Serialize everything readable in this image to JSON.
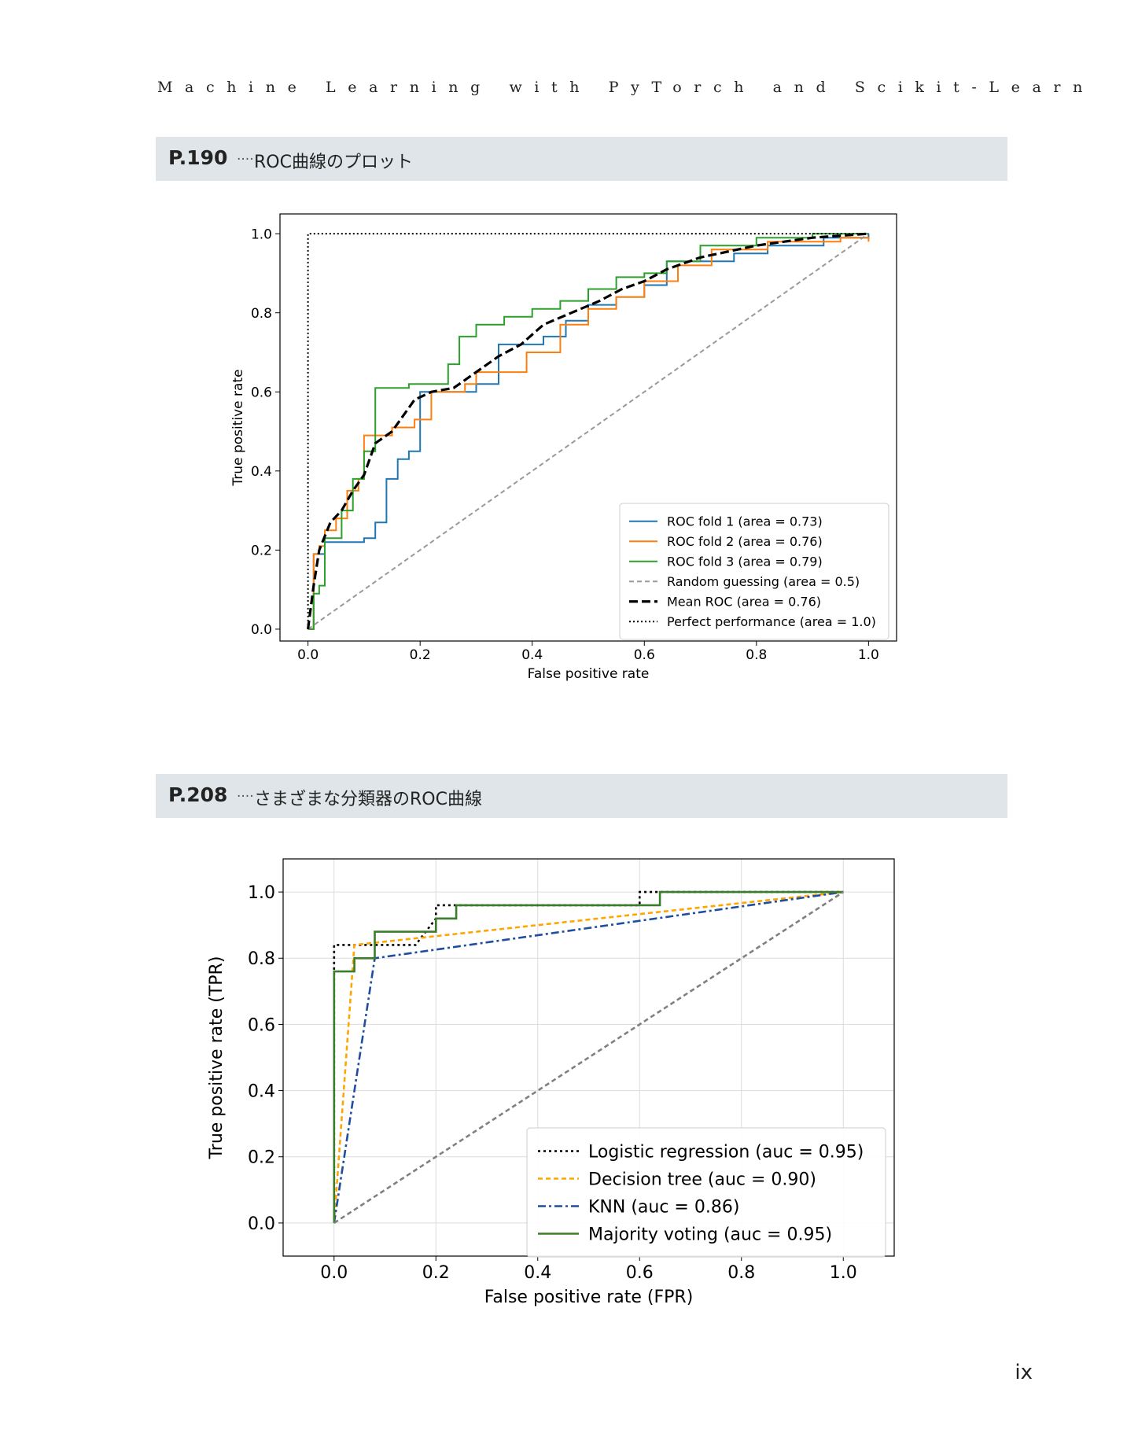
{
  "page": {
    "running_head": "Machine Learning with PyTorch and Scikit-Learn",
    "page_number": "ix"
  },
  "sections": [
    {
      "number": "P.190",
      "dots": "....",
      "title": "ROC曲線のプロット"
    },
    {
      "number": "P.208",
      "dots": "....",
      "title": "さまざまな分類器のROC曲線"
    }
  ],
  "chart_data": [
    {
      "type": "line",
      "title": "",
      "xlabel": "False positive rate",
      "ylabel": "True positive rate",
      "xlim": [
        -0.05,
        1.05
      ],
      "ylim": [
        -0.03,
        1.05
      ],
      "xticks": [
        "0.0",
        "0.2",
        "0.4",
        "0.6",
        "0.8",
        "1.0"
      ],
      "yticks": [
        "0.0",
        "0.2",
        "0.4",
        "0.6",
        "0.8",
        "1.0"
      ],
      "grid": false,
      "legend_position": "lower-right",
      "series": [
        {
          "name": "ROC fold 1 (area = 0.73)",
          "color": "#1f77b4",
          "style": "solid",
          "step": true,
          "x": [
            0,
            0.01,
            0.03,
            0.1,
            0.12,
            0.14,
            0.16,
            0.18,
            0.2,
            0.24,
            0.3,
            0.34,
            0.38,
            0.42,
            0.46,
            0.5,
            0.55,
            0.6,
            0.64,
            0.7,
            0.76,
            0.82,
            0.92,
            1.0
          ],
          "y": [
            0,
            0.19,
            0.22,
            0.23,
            0.27,
            0.38,
            0.43,
            0.45,
            0.6,
            0.6,
            0.62,
            0.72,
            0.72,
            0.74,
            0.78,
            0.82,
            0.84,
            0.87,
            0.93,
            0.93,
            0.95,
            0.97,
            0.99,
            1.0
          ]
        },
        {
          "name": "ROC fold 2 (area = 0.76)",
          "color": "#ff7f0e",
          "style": "solid",
          "step": true,
          "x": [
            0,
            0.01,
            0.02,
            0.03,
            0.05,
            0.07,
            0.09,
            0.1,
            0.12,
            0.15,
            0.19,
            0.22,
            0.28,
            0.3,
            0.39,
            0.45,
            0.5,
            0.55,
            0.6,
            0.66,
            0.72,
            0.82,
            0.95,
            1.0
          ],
          "y": [
            0,
            0.19,
            0.21,
            0.25,
            0.28,
            0.35,
            0.38,
            0.49,
            0.49,
            0.51,
            0.53,
            0.6,
            0.62,
            0.65,
            0.7,
            0.77,
            0.81,
            0.84,
            0.88,
            0.92,
            0.96,
            0.98,
            0.99,
            0.98
          ]
        },
        {
          "name": "ROC fold 3 (area = 0.79)",
          "color": "#2ca02c",
          "style": "solid",
          "step": true,
          "x": [
            0,
            0.01,
            0.02,
            0.03,
            0.06,
            0.08,
            0.1,
            0.12,
            0.18,
            0.25,
            0.27,
            0.3,
            0.35,
            0.4,
            0.45,
            0.5,
            0.55,
            0.6,
            0.64,
            0.7,
            0.8,
            0.9,
            1.0
          ],
          "y": [
            0,
            0.09,
            0.11,
            0.23,
            0.3,
            0.38,
            0.45,
            0.61,
            0.62,
            0.67,
            0.74,
            0.77,
            0.79,
            0.81,
            0.83,
            0.86,
            0.89,
            0.9,
            0.93,
            0.97,
            0.99,
            1.0,
            1.0
          ]
        },
        {
          "name": "Random guessing (area = 0.5)",
          "color": "#999999",
          "style": "dashed",
          "step": false,
          "x": [
            0,
            1
          ],
          "y": [
            0,
            1
          ]
        },
        {
          "name": "Mean ROC (area = 0.76)",
          "color": "#000000",
          "style": "bold-dashed",
          "step": false,
          "x": [
            0,
            0.01,
            0.02,
            0.04,
            0.06,
            0.08,
            0.1,
            0.12,
            0.15,
            0.19,
            0.22,
            0.26,
            0.3,
            0.34,
            0.38,
            0.42,
            0.47,
            0.52,
            0.56,
            0.6,
            0.64,
            0.7,
            0.8,
            0.9,
            1.0
          ],
          "y": [
            0,
            0.11,
            0.2,
            0.27,
            0.3,
            0.35,
            0.39,
            0.47,
            0.5,
            0.58,
            0.6,
            0.61,
            0.65,
            0.69,
            0.72,
            0.77,
            0.8,
            0.83,
            0.86,
            0.88,
            0.91,
            0.94,
            0.97,
            0.99,
            1.0
          ]
        },
        {
          "name": "Perfect performance (area = 1.0)",
          "color": "#000000",
          "style": "dotted",
          "step": false,
          "x": [
            0,
            0,
            1
          ],
          "y": [
            0,
            1,
            1
          ]
        }
      ]
    },
    {
      "type": "line",
      "title": "",
      "xlabel": "False positive rate (FPR)",
      "ylabel": "True positive rate (TPR)",
      "xlim": [
        -0.1,
        1.1
      ],
      "ylim": [
        -0.1,
        1.1
      ],
      "xticks": [
        "0.0",
        "0.2",
        "0.4",
        "0.6",
        "0.8",
        "1.0"
      ],
      "yticks": [
        "0.0",
        "0.2",
        "0.4",
        "0.6",
        "0.8",
        "1.0"
      ],
      "grid": true,
      "legend_position": "lower-right",
      "series": [
        {
          "name": "Logistic regression (auc = 0.95)",
          "color": "#000000",
          "style": "dotted",
          "step": false,
          "x": [
            0,
            0,
            0.16,
            0.2,
            0.2,
            0.6,
            0.6,
            1.0
          ],
          "y": [
            0,
            0.84,
            0.84,
            0.92,
            0.96,
            0.96,
            1.0,
            1.0
          ]
        },
        {
          "name": "Decision tree (auc = 0.90)",
          "color": "#ffa500",
          "style": "dashed",
          "step": false,
          "x": [
            0,
            0.04,
            1.0
          ],
          "y": [
            0,
            0.84,
            1.0
          ]
        },
        {
          "name": "KNN (auc = 0.86)",
          "color": "#1f4e9e",
          "style": "dashdot",
          "step": false,
          "x": [
            0,
            0.08,
            1.0
          ],
          "y": [
            0,
            0.8,
            1.0
          ]
        },
        {
          "name": "Majority voting (auc = 0.95)",
          "color": "#3a7d2a",
          "style": "solid",
          "step": false,
          "x": [
            0,
            0,
            0.04,
            0.04,
            0.08,
            0.08,
            0.2,
            0.2,
            0.24,
            0.24,
            0.64,
            0.64,
            1.0
          ],
          "y": [
            0,
            0.76,
            0.76,
            0.8,
            0.8,
            0.88,
            0.88,
            0.92,
            0.92,
            0.96,
            0.96,
            1.0,
            1.0
          ]
        },
        {
          "name": "",
          "color": "#808080",
          "style": "dashed",
          "step": false,
          "x": [
            0,
            1
          ],
          "y": [
            0,
            1
          ]
        }
      ]
    }
  ]
}
